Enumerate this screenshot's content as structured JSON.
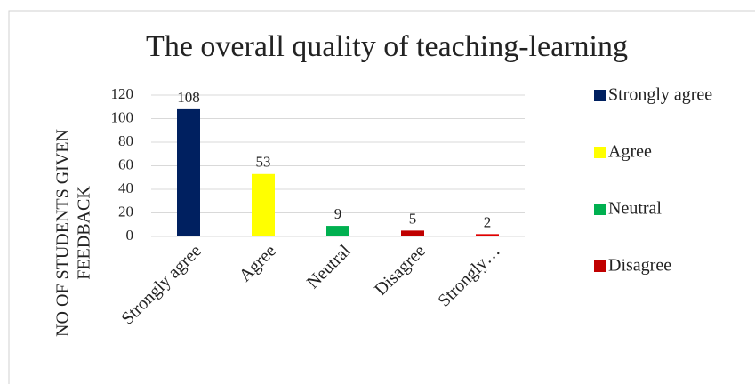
{
  "chart_data": {
    "type": "bar",
    "title": "The overall quality of teaching-learning",
    "y_label": [
      "NO OF STUDENTS GIVEN",
      "FEEDBACK"
    ],
    "categories": [
      "Strongly agree",
      "Agree",
      "Neutral",
      "Disagree",
      "Strongly…"
    ],
    "values": [
      108,
      53,
      9,
      5,
      2
    ],
    "colors": [
      "#002060",
      "#ffff00",
      "#00b050",
      "#c00000",
      "#e00000"
    ],
    "legend": [
      "Strongly agree",
      "Agree",
      "Neutral",
      "Disagree"
    ],
    "ylim": [
      0,
      120
    ],
    "yticks": [
      0,
      20,
      40,
      60,
      80,
      100,
      120
    ],
    "grid": true
  }
}
